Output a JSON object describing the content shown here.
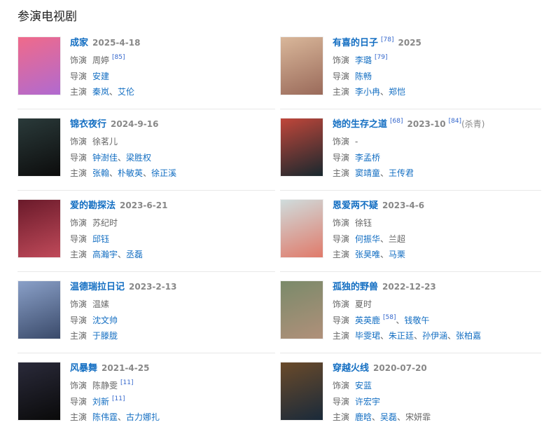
{
  "heading": "参演电视剧",
  "labels": {
    "role": "饰演",
    "director": "导演",
    "cast": "主演"
  },
  "separator": "、",
  "items": [
    {
      "title": "成家",
      "date": "2025-4-18",
      "poster": [
        "#f06a8a",
        "#b06ad0"
      ],
      "role": [
        {
          "name": "周婷",
          "link": false,
          "ref": "[85]"
        }
      ],
      "director": [
        {
          "name": "安建",
          "link": true
        }
      ],
      "cast": [
        {
          "name": "秦岚",
          "link": true
        },
        {
          "name": "艾伦",
          "link": true
        }
      ]
    },
    {
      "title": "有喜的日子",
      "title_ref": "[78]",
      "date": "2025",
      "poster": [
        "#d9b79a",
        "#9a6a5a"
      ],
      "role": [
        {
          "name": "李璐",
          "link": true,
          "ref": "[79]"
        }
      ],
      "director": [
        {
          "name": "陈畅",
          "link": true
        }
      ],
      "cast": [
        {
          "name": "李小冉",
          "link": true
        },
        {
          "name": "郑恺",
          "link": true
        }
      ]
    },
    {
      "title": "锦衣夜行",
      "date": "2024-9-16",
      "poster": [
        "#2a3a3a",
        "#0c0c0c"
      ],
      "role": [
        {
          "name": "徐茗儿",
          "link": false
        }
      ],
      "director": [
        {
          "name": "钟澍佳",
          "link": true
        },
        {
          "name": "梁胜权",
          "link": true
        }
      ],
      "cast": [
        {
          "name": "张翰",
          "link": true
        },
        {
          "name": "朴敏英",
          "link": true
        },
        {
          "name": "徐正溪",
          "link": true
        }
      ]
    },
    {
      "title": "她的生存之道",
      "title_ref": "[68]",
      "date": "2023-10",
      "date_ref": "[84]",
      "date_note": "(杀青)",
      "poster": [
        "#c0463a",
        "#18282e"
      ],
      "role": [
        {
          "name": "-",
          "link": false
        }
      ],
      "director": [
        {
          "name": "李孟桥",
          "link": true
        }
      ],
      "cast": [
        {
          "name": "窦靖童",
          "link": true
        },
        {
          "name": "王传君",
          "link": true
        }
      ]
    },
    {
      "title": "爱的勘探法",
      "date": "2023-6-21",
      "poster": [
        "#6a1a2a",
        "#c04a5a"
      ],
      "role": [
        {
          "name": "苏纪时",
          "link": false
        }
      ],
      "director": [
        {
          "name": "邱钰",
          "link": true
        }
      ],
      "cast": [
        {
          "name": "高瀚宇",
          "link": true
        },
        {
          "name": "丞磊",
          "link": true
        }
      ]
    },
    {
      "title": "恩爱两不疑",
      "date": "2023-4-6",
      "poster": [
        "#cfdcdc",
        "#e07a6a"
      ],
      "role": [
        {
          "name": "徐钰",
          "link": false
        }
      ],
      "director": [
        {
          "name": "何振华",
          "link": true
        },
        {
          "name": "兰超",
          "link": false
        }
      ],
      "cast": [
        {
          "name": "张昊唯",
          "link": true
        },
        {
          "name": "马栗",
          "link": true
        }
      ]
    },
    {
      "title": "温德瑞拉日记",
      "date": "2023-2-13",
      "poster": [
        "#8aa0c8",
        "#3a4a6a"
      ],
      "role": [
        {
          "name": "温嫊",
          "link": false
        }
      ],
      "director": [
        {
          "name": "沈文帅",
          "link": true
        }
      ],
      "cast": [
        {
          "name": "于滕胧",
          "link": true
        }
      ]
    },
    {
      "title": "孤独的野兽",
      "date": "2022-12-23",
      "poster": [
        "#7a8a6a",
        "#b0907a"
      ],
      "role": [
        {
          "name": "夏时",
          "link": false
        }
      ],
      "director": [
        {
          "name": "英英鹿",
          "link": true,
          "ref": "[58]"
        },
        {
          "name": "钱敬午",
          "link": true
        }
      ],
      "cast": [
        {
          "name": "毕雯珺",
          "link": true
        },
        {
          "name": "朱正廷",
          "link": true
        },
        {
          "name": "孙伊涵",
          "link": true
        },
        {
          "name": "张柏嘉",
          "link": true
        }
      ]
    },
    {
      "title": "风暴舞",
      "date": "2021-4-25",
      "poster": [
        "#2a2a3a",
        "#0a0a0a"
      ],
      "role": [
        {
          "name": "陈静雯",
          "link": false,
          "ref": "[11]"
        }
      ],
      "director": [
        {
          "name": "刘新",
          "link": true,
          "ref": "[11]"
        }
      ],
      "cast": [
        {
          "name": "陈伟霆",
          "link": true
        },
        {
          "name": "古力娜扎",
          "link": true
        }
      ]
    },
    {
      "title": "穿越火线",
      "date": "2020-07-20",
      "poster": [
        "#6a4a2a",
        "#1a2a3a"
      ],
      "role": [
        {
          "name": "安蓝",
          "link": true
        }
      ],
      "director": [
        {
          "name": "许宏宇",
          "link": true
        }
      ],
      "cast": [
        {
          "name": "鹿晗",
          "link": true
        },
        {
          "name": "吴磊",
          "link": true
        },
        {
          "name": "宋妍霏",
          "link": false
        }
      ]
    }
  ]
}
